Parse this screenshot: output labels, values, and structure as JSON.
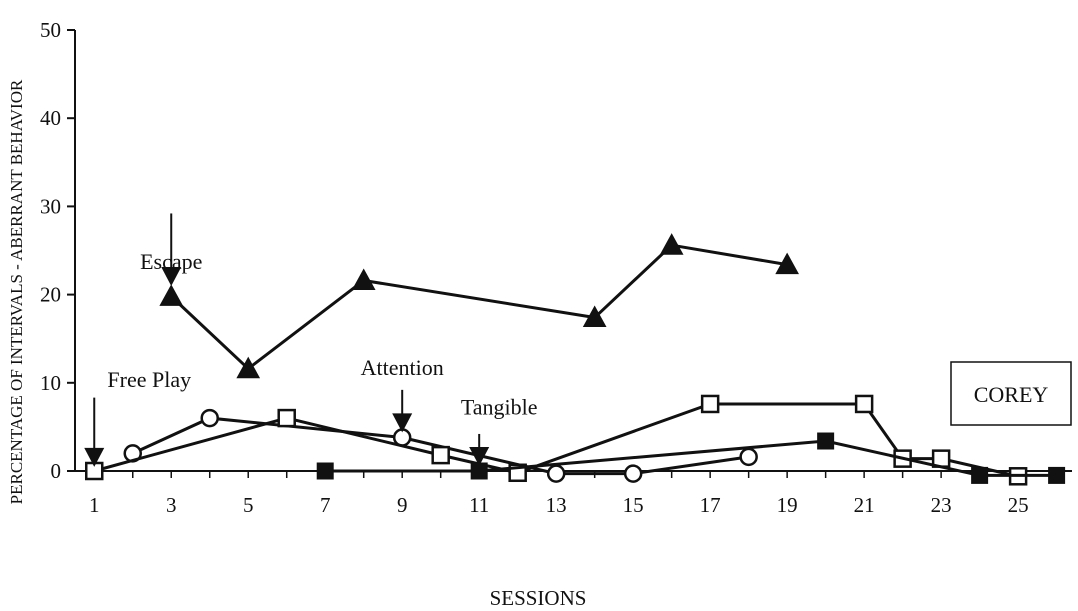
{
  "chart_data": {
    "type": "line",
    "xlabel": "SESSIONS",
    "ylabel": "PERCENTAGE OF INTERVALS - ABERRANT BEHAVIOR",
    "xlim": [
      0.5,
      26.4
    ],
    "ylim": [
      0,
      50
    ],
    "xticks": [
      1,
      3,
      5,
      7,
      9,
      11,
      13,
      15,
      17,
      19,
      21,
      23,
      25
    ],
    "yticks": [
      0,
      10,
      20,
      30,
      40,
      50
    ],
    "grid": false,
    "legend": "none",
    "series": [
      {
        "name": "Escape",
        "marker": "filled-triangle",
        "x": [
          3,
          5,
          8,
          14,
          16,
          19
        ],
        "y": [
          19.8,
          11.6,
          21.6,
          17.4,
          25.6,
          23.4
        ]
      },
      {
        "name": "Attention",
        "marker": "open-circle",
        "x": [
          2,
          4,
          9,
          13,
          15,
          18
        ],
        "y": [
          2.0,
          6.0,
          3.8,
          -0.3,
          -0.3,
          1.6
        ]
      },
      {
        "name": "Free Play",
        "marker": "open-square",
        "x": [
          1,
          6,
          10,
          12,
          17,
          21,
          22,
          23,
          25
        ],
        "y": [
          0,
          6.0,
          1.8,
          -0.2,
          7.6,
          7.6,
          1.4,
          1.4,
          -0.6
        ]
      },
      {
        "name": "Tangible",
        "marker": "filled-square",
        "x": [
          7,
          11,
          20,
          24,
          26
        ],
        "y": [
          0,
          0,
          3.4,
          -0.5,
          -0.5
        ]
      }
    ],
    "annotations": [
      {
        "text": "Escape",
        "arrow_x": 3,
        "arrow_tip_y": 21.2
      },
      {
        "text": "Attention",
        "arrow_x": 9,
        "arrow_tip_y": 4.6
      },
      {
        "text": "Tangible",
        "arrow_x": 11,
        "arrow_tip_y": 0.8
      },
      {
        "text": "Free Play",
        "arrow_x": 1,
        "arrow_tip_y": 0.7
      }
    ],
    "label_box": "COREY"
  }
}
